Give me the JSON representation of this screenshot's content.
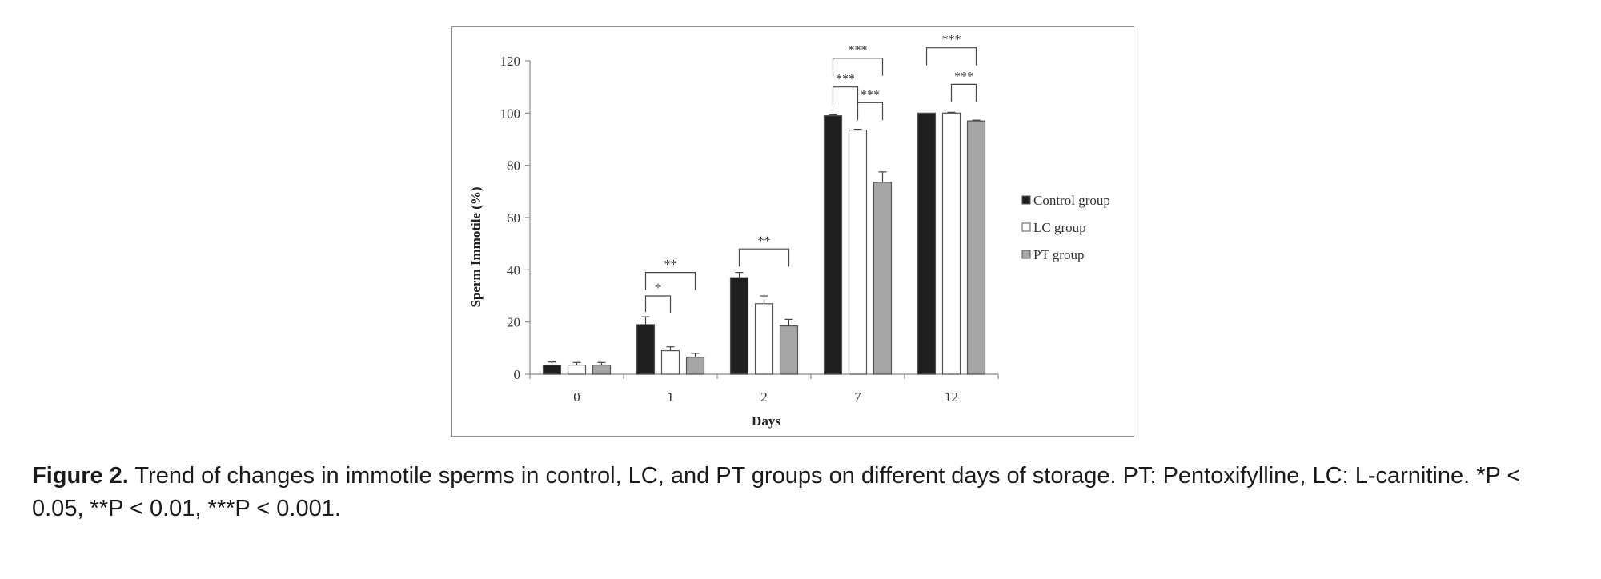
{
  "chart_data": {
    "type": "bar",
    "categories": [
      "0",
      "1",
      "2",
      "7",
      "12"
    ],
    "xlabel": "Days",
    "ylabel": "Sperm Immotile (%)",
    "ylim": [
      0,
      120
    ],
    "yticks": [
      0,
      20,
      40,
      60,
      80,
      100,
      120
    ],
    "grid": false,
    "legend_position": "right",
    "series": [
      {
        "name": "Control group",
        "color": "#1f1f1f",
        "values": [
          3.5,
          19,
          37,
          99,
          100
        ],
        "errors": [
          1.2,
          3,
          2,
          0.3,
          0
        ]
      },
      {
        "name": "LC group",
        "color": "#ffffff",
        "values": [
          3.5,
          9,
          27,
          93.5,
          100
        ],
        "errors": [
          1,
          1.5,
          3,
          0.3,
          0.3
        ]
      },
      {
        "name": "PT group",
        "color": "#a6a6a6",
        "values": [
          3.5,
          6.5,
          18.5,
          73.5,
          97
        ],
        "errors": [
          1,
          1.5,
          2.5,
          4,
          0.3
        ]
      }
    ],
    "annotations": [
      {
        "category": "1",
        "from": 0,
        "to": 1,
        "y": 30,
        "label": "*"
      },
      {
        "category": "1",
        "from": 0,
        "to": 2,
        "y": 39,
        "label": "**"
      },
      {
        "category": "2",
        "from": 0,
        "to": 2,
        "y": 48,
        "label": "**"
      },
      {
        "category": "7",
        "from": 0,
        "to": 1,
        "y": 110,
        "label": "***"
      },
      {
        "category": "7",
        "from": 1,
        "to": 2,
        "y": 104,
        "label": "***"
      },
      {
        "category": "7",
        "from": 0,
        "to": 2,
        "y": 121,
        "label": "***"
      },
      {
        "category": "12",
        "from": 0,
        "to": 2,
        "y": 125,
        "label": "***"
      },
      {
        "category": "12",
        "from": 1,
        "to": 2,
        "y": 111,
        "label": "***"
      }
    ]
  },
  "caption": {
    "label": "Figure 2.",
    "text": " Trend of changes in immotile sperms in control, LC, and PT groups on different days of storage. PT: Pentoxifylline, LC: L-carnitine. *P < 0.05, **P < 0.01, ***P < 0.001."
  }
}
